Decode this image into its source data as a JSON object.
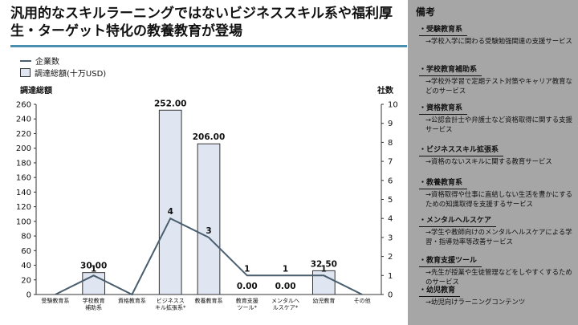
{
  "title": "汎用的なスキルラーニングではないビジネススキル系や福利厚生・ターゲット特化の教養教育が登場",
  "legend": {
    "line_label": "企業数",
    "bar_label": "調達総額(十万USD)"
  },
  "chart_data": {
    "type": "bar",
    "categories": [
      "受験教育系",
      "学校教育補助系",
      "資格教育系",
      "ビジネススキル拡張系*",
      "教養教育系",
      "教育支援ツール*",
      "メンタルヘルスケア*",
      "幼児教育",
      "その他"
    ],
    "category_display": [
      [
        "受験教育系"
      ],
      [
        "学校教育",
        "補助系"
      ],
      [
        "資格教育系"
      ],
      [
        "ビジネスス",
        "キル拡張系*"
      ],
      [
        "教養教育系"
      ],
      [
        "教育支援",
        "ツール*"
      ],
      [
        "メンタルヘ",
        "ルスケア*"
      ],
      [
        "幼児教育"
      ],
      [
        "その他"
      ]
    ],
    "series": [
      {
        "name": "調達総額(十万USD)",
        "type": "bar",
        "axis": "left",
        "values": [
          0,
          30.0,
          0,
          252.0,
          206.0,
          0.0,
          0.0,
          32.5,
          0
        ]
      },
      {
        "name": "企業数",
        "type": "line",
        "axis": "right",
        "values": [
          0,
          1,
          0,
          4,
          3,
          1,
          1,
          1,
          0
        ]
      }
    ],
    "bar_labels": [
      "",
      "30.00",
      "",
      "252.00",
      "206.00",
      "0.00",
      "0.00",
      "32.50",
      ""
    ],
    "line_labels": [
      "",
      "1",
      "",
      "4",
      "3",
      "1",
      "1",
      "1",
      ""
    ],
    "ylabel_left": "調達総額",
    "ylabel_right": "社数",
    "ylim_left": [
      0,
      260
    ],
    "ylim_right": [
      0,
      10
    ],
    "yticks_left": [
      0,
      20,
      40,
      60,
      80,
      100,
      120,
      140,
      160,
      180,
      200,
      220,
      240,
      260
    ],
    "yticks_right": [
      0,
      1,
      2,
      3,
      4,
      5,
      6,
      7,
      8,
      9,
      10
    ],
    "colors": {
      "bar_fill": "#dfe6f2",
      "bar_stroke": "#333333",
      "line": "#4a5e6e"
    }
  },
  "notes": {
    "title": "備考",
    "items": [
      {
        "head": "・受験教育系",
        "desc": "→学校入学に関わる受験勉強関連の支援サービス"
      },
      {
        "head": "・学校教育補助系",
        "desc": "→学校外学習で定期テスト対策やキャリア教育などのサービス"
      },
      {
        "head": "・資格教育系",
        "desc": "→公認会計士や弁護士など資格取得に関する支援サービス"
      },
      {
        "head": "・ビジネススキル拡張系",
        "desc": "→資格のないスキルに関する教育サービス"
      },
      {
        "head": "・教養教育系",
        "desc": "→資格取得や仕事に直結しない生活を豊かにするための知識取得を支援するサービス"
      },
      {
        "head": "・メンタルヘルスケア",
        "desc": "→学生や教師向けのメンタルヘルスケアによる学習・指導効率等改善サービス"
      },
      {
        "head": "・教育支援ツール",
        "desc": "→先生が授業や生徒管理などをしやすくするためのサービス"
      },
      {
        "head": "・幼児教育",
        "desc": "→幼児向けラーニングコンテンツ"
      }
    ]
  }
}
